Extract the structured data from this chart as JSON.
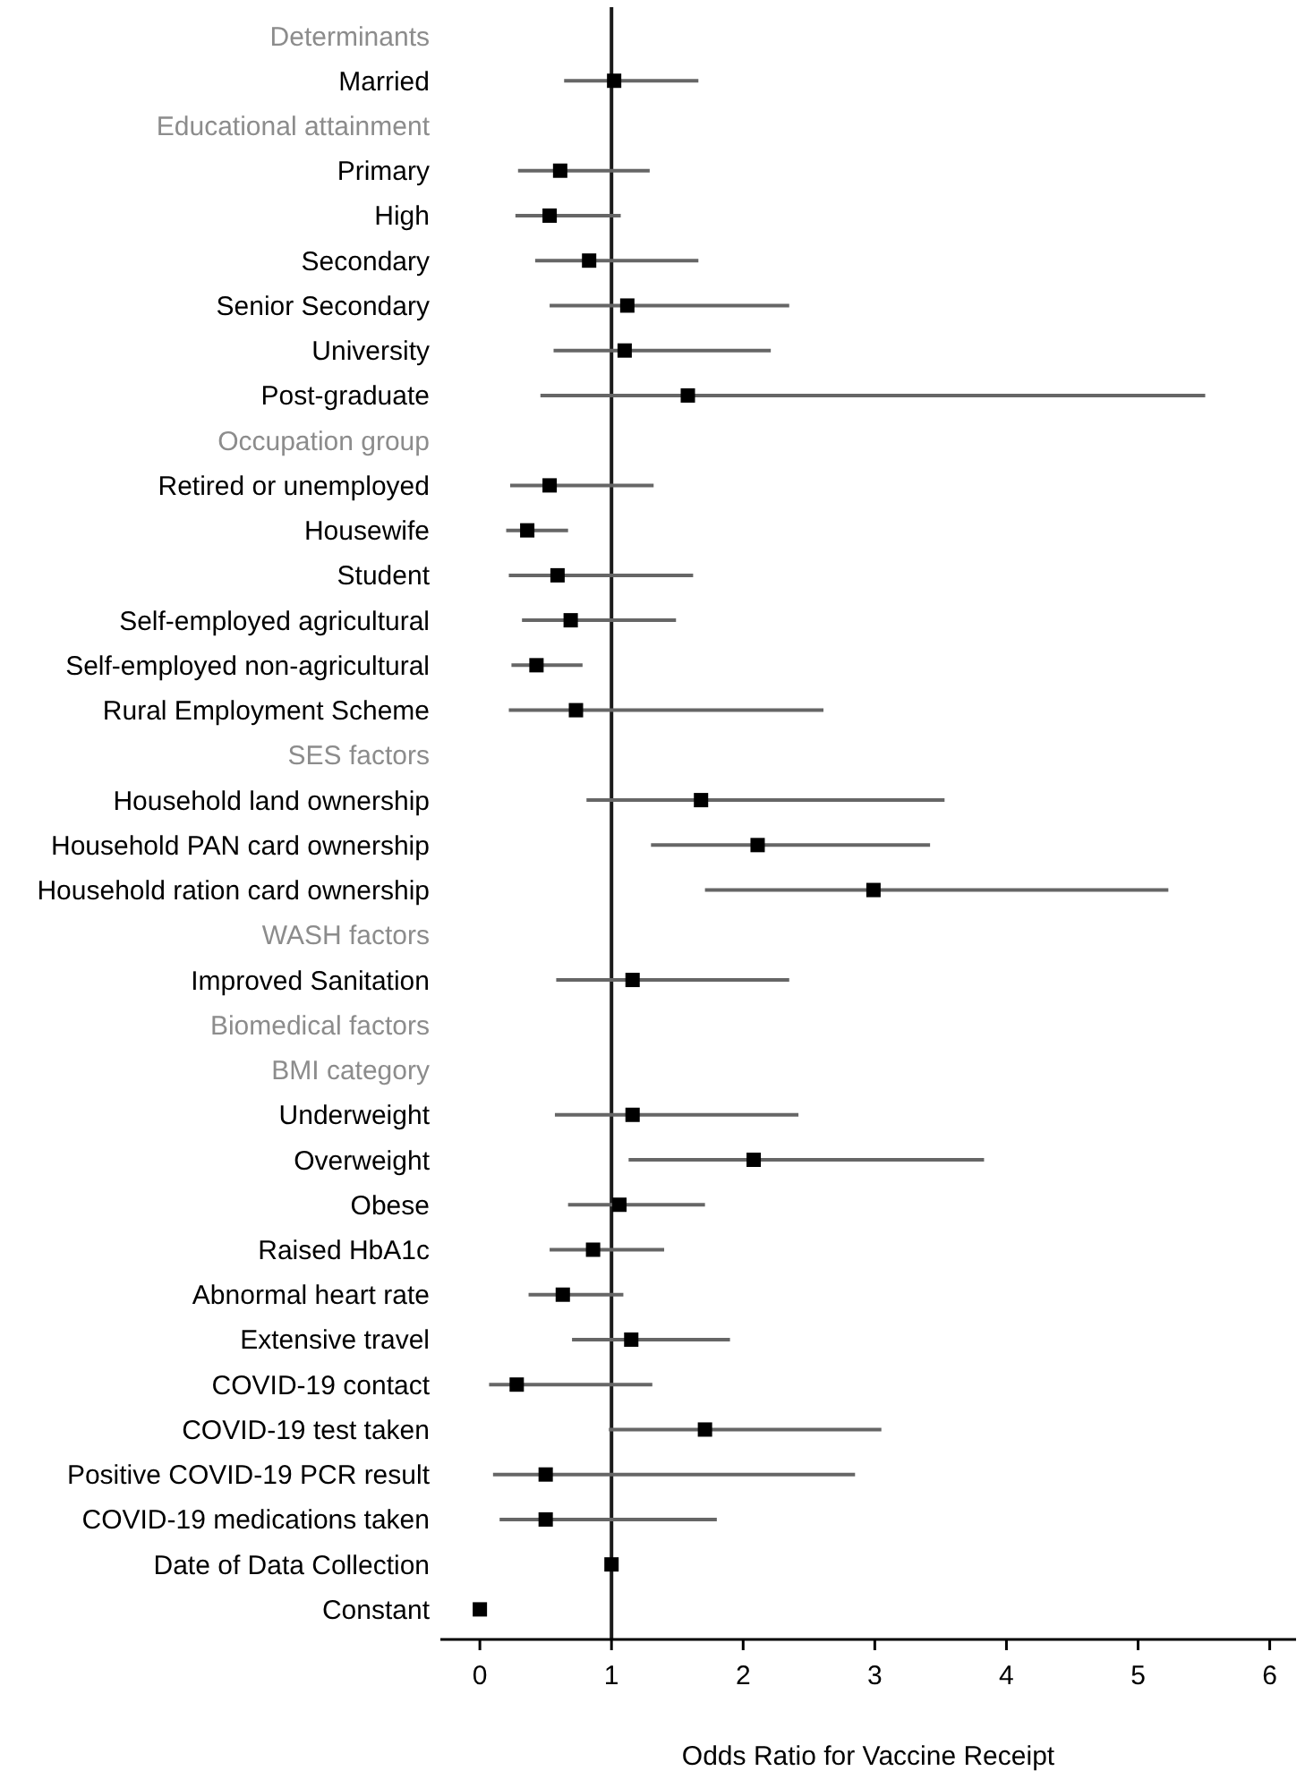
{
  "chart_data": {
    "type": "scatter",
    "orientation": "horizontal",
    "xlabel": "Odds Ratio for Vaccine Receipt",
    "categories": [
      "Determinants",
      "Married",
      "Educational attainment",
      "Primary",
      "High",
      "Secondary",
      "Senior Secondary",
      "University",
      "Post-graduate",
      "Occupation group",
      "Retired or unemployed",
      "Housewife",
      "Student",
      "Self-employed agricultural",
      "Self-employed non-agricultural",
      "Rural Employment Scheme",
      "SES factors",
      "Household land ownership",
      "Household PAN card ownership",
      "Household ration card ownership",
      "WASH factors",
      "Improved Sanitation",
      "Biomedical factors",
      "BMI category",
      "Underweight",
      "Overweight",
      "Obese",
      "Raised HbA1c",
      "Abnormal heart rate",
      "Extensive travel",
      "COVID-19 contact",
      "COVID-19 test taken",
      "Positive COVID-19 PCR result",
      "COVID-19 medications taken",
      "Date of Data Collection",
      "Constant"
    ],
    "series": [
      {
        "color": "#000000",
        "values": [
          null,
          1.02,
          null,
          0.61,
          0.53,
          0.83,
          1.12,
          1.1,
          1.58,
          null,
          0.53,
          0.36,
          0.59,
          0.69,
          0.43,
          0.73,
          null,
          1.68,
          2.11,
          2.99,
          null,
          1.16,
          null,
          null,
          1.16,
          2.08,
          1.06,
          0.86,
          0.63,
          1.15,
          0.28,
          1.71,
          0.5,
          0.5,
          1.0,
          0.0
        ],
        "errors": [
          null,
          [
            0.64,
            1.66
          ],
          null,
          [
            0.29,
            1.29
          ],
          [
            0.27,
            1.07
          ],
          [
            0.42,
            1.66
          ],
          [
            0.53,
            2.35
          ],
          [
            0.56,
            2.21
          ],
          [
            0.46,
            5.51
          ],
          null,
          [
            0.23,
            1.32
          ],
          [
            0.2,
            0.67
          ],
          [
            0.22,
            1.62
          ],
          [
            0.32,
            1.49
          ],
          [
            0.24,
            0.78
          ],
          [
            0.22,
            2.61
          ],
          null,
          [
            0.81,
            3.53
          ],
          [
            1.3,
            3.42
          ],
          [
            1.71,
            5.23
          ],
          null,
          [
            0.58,
            2.35
          ],
          null,
          null,
          [
            0.57,
            2.42
          ],
          [
            1.13,
            3.83
          ],
          [
            0.67,
            1.71
          ],
          [
            0.53,
            1.4
          ],
          [
            0.37,
            1.09
          ],
          [
            0.7,
            1.9
          ],
          [
            0.07,
            1.31
          ],
          [
            0.98,
            3.05
          ],
          [
            0.1,
            2.85
          ],
          [
            0.15,
            1.8
          ],
          null,
          null
        ]
      }
    ],
    "xlim": [
      -0.3,
      6.2
    ],
    "xticks": [
      0,
      1,
      2,
      3,
      4,
      5,
      6
    ],
    "marker": "square",
    "grid": false,
    "ref_lines": [
      {
        "axis": "x",
        "value": 1,
        "color": "#1a1a1a"
      }
    ]
  }
}
